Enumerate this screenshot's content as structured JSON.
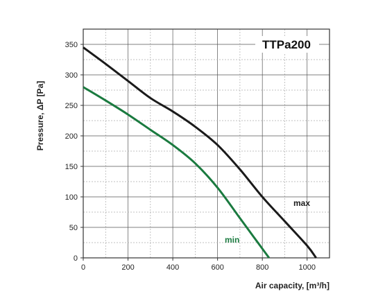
{
  "chart_data": {
    "type": "line",
    "title": "TTPa200",
    "xlabel": "Air capacity, [m³/h]",
    "ylabel": "Pressure, ΔP [Pa]",
    "xlim": [
      0,
      1100
    ],
    "ylim": [
      0,
      375
    ],
    "x_major_ticks": [
      0,
      200,
      400,
      600,
      800,
      1000
    ],
    "x_minor_step": 100,
    "y_major_ticks": [
      0,
      50,
      100,
      150,
      200,
      250,
      300,
      350
    ],
    "y_minor_step": 25,
    "grid": true,
    "series": [
      {
        "name": "max",
        "color": "#1a1a1a",
        "x": [
          0,
          100,
          200,
          300,
          400,
          500,
          600,
          700,
          800,
          900,
          1000,
          1040
        ],
        "y": [
          345,
          318,
          290,
          262,
          240,
          215,
          185,
          145,
          100,
          60,
          20,
          0
        ]
      },
      {
        "name": "min",
        "color": "#1a7a3f",
        "x": [
          0,
          100,
          200,
          300,
          400,
          500,
          600,
          700,
          760,
          830
        ],
        "y": [
          280,
          258,
          235,
          210,
          185,
          155,
          115,
          65,
          35,
          0
        ]
      }
    ]
  }
}
